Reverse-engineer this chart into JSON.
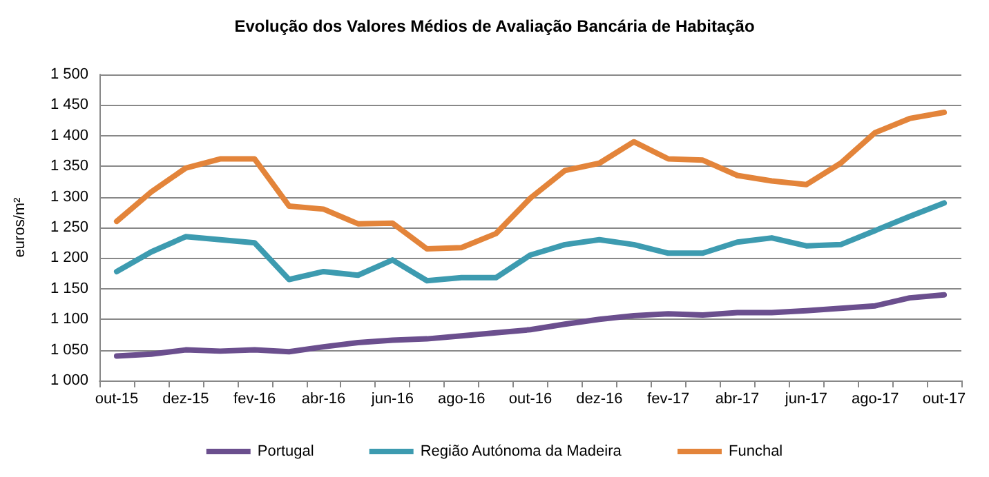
{
  "chart_data": {
    "type": "line",
    "title": "Evolução dos Valores Médios de Avaliação Bancária de Habitação",
    "ylabel": "euros/m²",
    "categories": [
      "out-15",
      null,
      "dez-15",
      null,
      "fev-16",
      null,
      "abr-16",
      null,
      "jun-16",
      null,
      "ago-16",
      null,
      "out-16",
      null,
      "dez-16",
      null,
      "fev-17",
      null,
      "abr-17",
      null,
      "jun-17",
      null,
      "ago-17",
      null,
      "out-17"
    ],
    "series": [
      {
        "name": "Portugal",
        "color": "#6b4f8e",
        "values": [
          1040,
          1043,
          1050,
          1048,
          1050,
          1047,
          1055,
          1062,
          1066,
          1068,
          1073,
          1078,
          1083,
          1092,
          1100,
          1106,
          1109,
          1107,
          1111,
          1111,
          1114,
          1118,
          1122,
          1135,
          1140
        ]
      },
      {
        "name": "Região Autónoma da Madeira",
        "color": "#3d9bb0",
        "values": [
          1178,
          1210,
          1235,
          1230,
          1225,
          1165,
          1178,
          1172,
          1197,
          1163,
          1168,
          1168,
          1205,
          1222,
          1230,
          1222,
          1208,
          1208,
          1226,
          1233,
          1220,
          1222,
          1245,
          1268,
          1290
        ]
      },
      {
        "name": "Funchal",
        "color": "#e3843a",
        "values": [
          1260,
          1308,
          1347,
          1362,
          1362,
          1285,
          1280,
          1256,
          1257,
          1215,
          1217,
          1240,
          1298,
          1343,
          1355,
          1390,
          1362,
          1360,
          1335,
          1326,
          1320,
          1355,
          1405,
          1428,
          1438
        ]
      }
    ],
    "ylim": [
      1000,
      1500
    ],
    "yticks": [
      {
        "value": 1000,
        "label": "1 000"
      },
      {
        "value": 1050,
        "label": "1 050"
      },
      {
        "value": 1100,
        "label": "1 100"
      },
      {
        "value": 1150,
        "label": "1 150"
      },
      {
        "value": 1200,
        "label": "1 200"
      },
      {
        "value": 1250,
        "label": "1 250"
      },
      {
        "value": 1300,
        "label": "1 300"
      },
      {
        "value": 1350,
        "label": "1 350"
      },
      {
        "value": 1400,
        "label": "1 400"
      },
      {
        "value": 1450,
        "label": "1 450"
      },
      {
        "value": 1500,
        "label": "1 500"
      }
    ],
    "grid": "y",
    "legend": "bottom",
    "marker": "none",
    "line_style": "solid"
  }
}
